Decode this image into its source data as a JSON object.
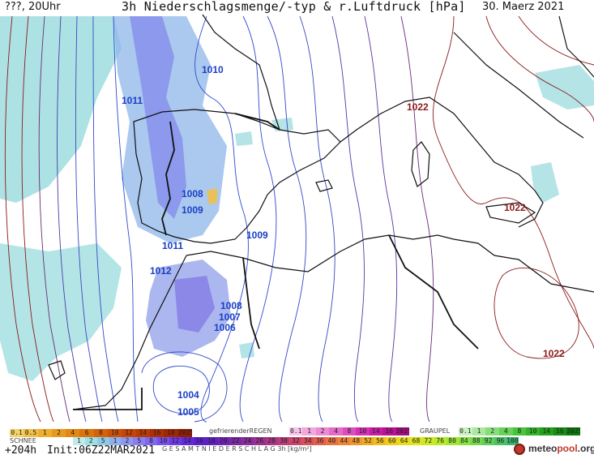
{
  "header": {
    "left": "???, 20Uhr",
    "title": "3h Niederschlagsmenge/-typ & r.Luftdruck [hPa]",
    "date": "30. Maerz 2021"
  },
  "isobar_labels": [
    {
      "text": "1010",
      "color": "#1a3fc4"
    },
    {
      "text": "1011",
      "color": "#1a3fc4"
    },
    {
      "text": "1022",
      "color": "#8b1a1a"
    },
    {
      "text": "1008",
      "color": "#1a3fc4"
    },
    {
      "text": "1009",
      "color": "#1a3fc4"
    },
    {
      "text": "1022",
      "color": "#8b1a1a"
    },
    {
      "text": "1011",
      "color": "#1a3fc4"
    },
    {
      "text": "1009",
      "color": "#1a3fc4"
    },
    {
      "text": "1012",
      "color": "#1a3fc4"
    },
    {
      "text": "1008",
      "color": "#1a3fc4"
    },
    {
      "text": "1007",
      "color": "#1a3fc4"
    },
    {
      "text": "1006",
      "color": "#1a3fc4"
    },
    {
      "text": "1022",
      "color": "#8b1a1a"
    },
    {
      "text": "1004",
      "color": "#1a3fc4"
    },
    {
      "text": "1005",
      "color": "#1a3fc4"
    }
  ],
  "legend": {
    "schnee": {
      "label": "SCHNEE",
      "values": [
        "0.1",
        "0.5",
        "1",
        "2",
        "4",
        "6",
        "8",
        "10",
        "12",
        "14",
        "16",
        "18",
        "2025+"
      ],
      "colors": [
        "#f2d36b",
        "#f0c04a",
        "#eeae2e",
        "#e99a1e",
        "#e38714",
        "#dc740e",
        "#d4620a",
        "#cc5208",
        "#c44506",
        "#b93a05",
        "#ad3004",
        "#a02703",
        "#941e02"
      ]
    },
    "regen": {
      "label": "gefrierenderREGEN",
      "values": [
        "0.1",
        "1",
        "2",
        "4",
        "8",
        "10",
        "14",
        "16",
        "2025+"
      ],
      "colors": [
        "#f7c6e8",
        "#f2a8de",
        "#ec8ad4",
        "#e56bc9",
        "#dd4dbe",
        "#d330b2",
        "#c81ba5",
        "#ba1097",
        "#a90a87"
      ]
    },
    "graupel": {
      "label": "GRAUPEL",
      "values": [
        "0.1",
        "1",
        "2",
        "4",
        "8",
        "10",
        "14",
        "16",
        "2025+"
      ],
      "colors": [
        "#c9f2c2",
        "#a9e89e",
        "#88dd7b",
        "#67d158",
        "#48c43a",
        "#34b22a",
        "#23a01e",
        "#168c14",
        "#0c780c"
      ]
    },
    "gesamt": {
      "label": "G E S A M T N I E D E R S C H L A G   3h   [kg/m²]",
      "values": [
        "1",
        "2",
        "5",
        "1",
        "2",
        "5",
        "8",
        "10",
        "12",
        "14",
        "16",
        "18",
        "20",
        "22",
        "24",
        "26",
        "28",
        "30",
        "32",
        "34",
        "36",
        "40",
        "44",
        "48",
        "52",
        "56",
        "60",
        "64",
        "68",
        "72",
        "76",
        "80",
        "84",
        "88",
        "92",
        "96",
        "100"
      ],
      "colors": [
        "#bfe9ea",
        "#9ddfe3",
        "#8fc9e6",
        "#8fb0ea",
        "#8d97ee",
        "#8a7ff0",
        "#8166ef",
        "#774fec",
        "#6b3ae6",
        "#6129dd",
        "#5b1fcf",
        "#601fc0",
        "#6d22b2",
        "#7b27a6",
        "#8a2c9b",
        "#9a3190",
        "#aa3785",
        "#bb3d78",
        "#cb446b",
        "#d9505c",
        "#e35f4e",
        "#ea7142",
        "#ee8437",
        "#f0972d",
        "#f1aa25",
        "#f1bc1f",
        "#f0cd1c",
        "#eadb1c",
        "#dde51e",
        "#cbe923",
        "#b6ea2b",
        "#a0e834",
        "#89e33f",
        "#73db4b",
        "#5ed058",
        "#4bc365",
        "#3cb570"
      ]
    }
  },
  "footer": {
    "step": "+204h",
    "init": "Init:06Z22MAR2021"
  },
  "brand": {
    "prefix": "meteo",
    "suffix": "pool",
    "tld": ".org"
  }
}
